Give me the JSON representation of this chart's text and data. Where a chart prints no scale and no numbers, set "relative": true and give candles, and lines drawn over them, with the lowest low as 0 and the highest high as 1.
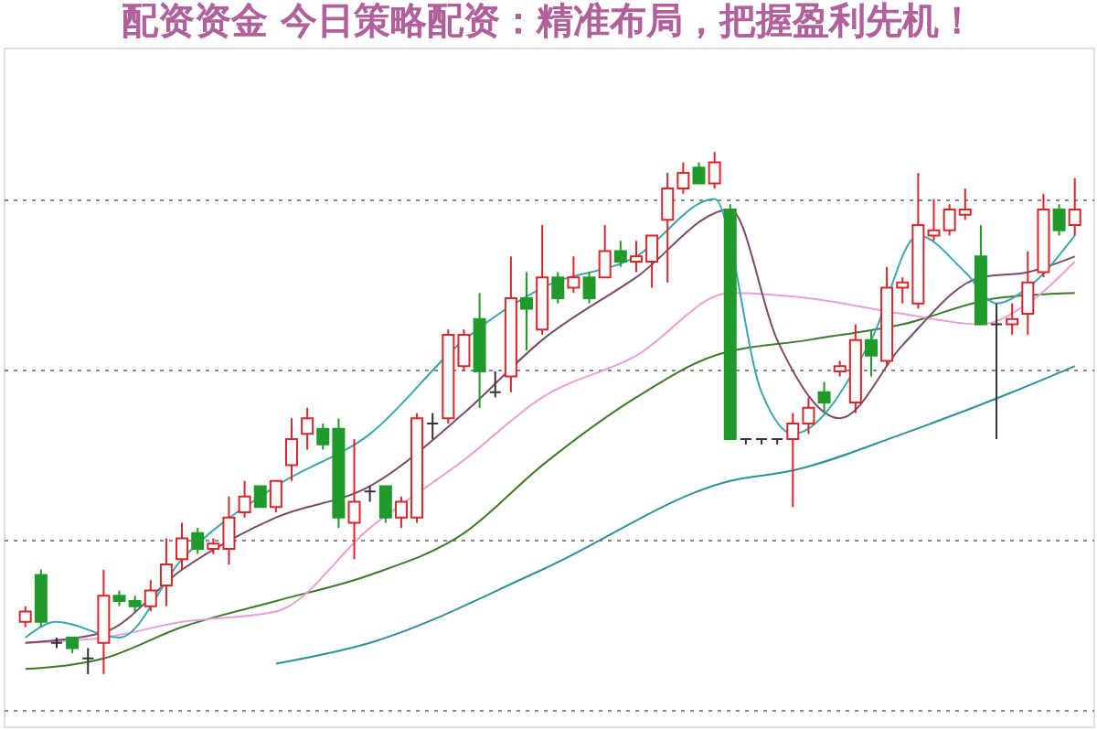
{
  "chart_data": {
    "type": "candlestick",
    "title": "配资资金 今日策略配资：精准布局，把握盈利先机！",
    "relative": true,
    "grid": "y",
    "categories": [
      null,
      null,
      null,
      null,
      null,
      null,
      null,
      null,
      null,
      null,
      null,
      null,
      null,
      null,
      null,
      null,
      null,
      null,
      null,
      null,
      null,
      null,
      null,
      null,
      null,
      null,
      null,
      null,
      null,
      null,
      null,
      null,
      null,
      null,
      null,
      null,
      null,
      null,
      null,
      null,
      null,
      null,
      null,
      null,
      null,
      null,
      null,
      null,
      null,
      null,
      null,
      null,
      null,
      null,
      null,
      null,
      null,
      null,
      null,
      null,
      null,
      null,
      null,
      null,
      null,
      null,
      null,
      null
    ],
    "ohlc": [
      [
        0.1,
        0.13,
        0.09,
        0.12
      ],
      [
        0.19,
        0.2,
        0.09,
        0.1
      ],
      [
        0.06,
        0.07,
        0.05,
        0.06
      ],
      [
        0.07,
        0.07,
        0.04,
        0.05
      ],
      [
        0.03,
        0.05,
        0.0,
        0.03
      ],
      [
        0.06,
        0.2,
        0.0,
        0.15
      ],
      [
        0.15,
        0.16,
        0.13,
        0.14
      ],
      [
        0.14,
        0.15,
        0.12,
        0.13
      ],
      [
        0.13,
        0.18,
        0.12,
        0.16
      ],
      [
        0.17,
        0.26,
        0.13,
        0.21
      ],
      [
        0.22,
        0.29,
        0.2,
        0.26
      ],
      [
        0.27,
        0.28,
        0.23,
        0.24
      ],
      [
        0.24,
        0.26,
        0.23,
        0.25
      ],
      [
        0.24,
        0.34,
        0.21,
        0.3
      ],
      [
        0.31,
        0.37,
        0.3,
        0.34
      ],
      [
        0.36,
        0.36,
        0.32,
        0.32
      ],
      [
        0.32,
        0.37,
        0.31,
        0.37
      ],
      [
        0.4,
        0.49,
        0.37,
        0.45
      ],
      [
        0.46,
        0.51,
        0.43,
        0.49
      ],
      [
        0.47,
        0.48,
        0.43,
        0.44
      ],
      [
        0.47,
        0.49,
        0.28,
        0.3
      ],
      [
        0.29,
        0.45,
        0.22,
        0.33
      ],
      [
        0.35,
        0.36,
        0.33,
        0.35
      ],
      [
        0.36,
        0.36,
        0.29,
        0.3
      ],
      [
        0.3,
        0.34,
        0.28,
        0.33
      ],
      [
        0.3,
        0.5,
        0.29,
        0.49
      ],
      [
        0.48,
        0.5,
        0.45,
        0.48
      ],
      [
        0.49,
        0.66,
        0.48,
        0.65
      ],
      [
        0.59,
        0.66,
        0.58,
        0.65
      ],
      [
        0.68,
        0.73,
        0.51,
        0.58
      ],
      [
        0.54,
        0.58,
        0.53,
        0.54
      ],
      [
        0.57,
        0.8,
        0.54,
        0.72
      ],
      [
        0.72,
        0.77,
        0.62,
        0.7
      ],
      [
        0.66,
        0.86,
        0.65,
        0.76
      ],
      [
        0.76,
        0.77,
        0.71,
        0.72
      ],
      [
        0.74,
        0.8,
        0.73,
        0.76
      ],
      [
        0.76,
        0.77,
        0.71,
        0.72
      ],
      [
        0.76,
        0.86,
        0.76,
        0.81
      ],
      [
        0.81,
        0.83,
        0.78,
        0.79
      ],
      [
        0.79,
        0.83,
        0.77,
        0.8
      ],
      [
        0.79,
        0.84,
        0.74,
        0.84
      ],
      [
        0.87,
        0.96,
        0.75,
        0.93
      ],
      [
        0.93,
        0.98,
        0.92,
        0.96
      ],
      [
        0.97,
        0.98,
        0.94,
        0.94
      ],
      [
        0.94,
        1.0,
        0.93,
        0.98
      ],
      [
        0.89,
        0.9,
        0.45,
        0.45
      ],
      [
        0.45,
        0.45,
        0.44,
        0.45
      ],
      [
        0.45,
        0.45,
        0.44,
        0.45
      ],
      [
        0.45,
        0.45,
        0.44,
        0.45
      ],
      [
        0.45,
        0.5,
        0.32,
        0.48
      ],
      [
        0.48,
        0.53,
        0.46,
        0.51
      ],
      [
        0.54,
        0.56,
        0.5,
        0.52
      ],
      [
        0.58,
        0.6,
        0.57,
        0.59
      ],
      [
        0.52,
        0.67,
        0.5,
        0.64
      ],
      [
        0.64,
        0.66,
        0.57,
        0.61
      ],
      [
        0.6,
        0.78,
        0.59,
        0.74
      ],
      [
        0.74,
        0.76,
        0.71,
        0.75
      ],
      [
        0.71,
        0.96,
        0.7,
        0.86
      ],
      [
        0.84,
        0.91,
        0.83,
        0.85
      ],
      [
        0.85,
        0.9,
        0.84,
        0.89
      ],
      [
        0.88,
        0.93,
        0.87,
        0.89
      ],
      [
        0.8,
        0.86,
        0.67,
        0.67
      ],
      [
        0.67,
        0.71,
        0.45,
        0.67
      ],
      [
        0.67,
        0.71,
        0.65,
        0.68
      ],
      [
        0.69,
        0.81,
        0.65,
        0.75
      ],
      [
        0.77,
        0.92,
        0.76,
        0.89
      ],
      [
        0.89,
        0.9,
        0.84,
        0.85
      ],
      [
        0.86,
        0.95,
        0.84,
        0.89
      ]
    ],
    "series": [
      {
        "type": "line",
        "color": "#2f8f9a",
        "values": [
          null,
          null,
          null,
          null,
          null,
          null,
          null,
          null,
          null,
          null,
          null,
          null,
          null,
          null,
          null,
          null,
          0.02,
          null,
          null,
          null,
          null,
          null,
          0.06,
          null,
          null,
          null,
          null,
          null,
          null,
          null,
          null,
          null,
          null,
          0.2,
          null,
          null,
          null,
          null,
          null,
          null,
          null,
          null,
          null,
          null,
          null,
          0.37,
          null,
          null,
          null,
          0.39,
          null,
          null,
          null,
          null,
          null,
          null,
          0.46,
          null,
          null,
          null,
          null,
          null,
          null,
          0.54,
          null,
          null,
          null,
          0.59
        ]
      },
      {
        "type": "line",
        "color": "#3d7a2a",
        "values": [
          0.01,
          null,
          null,
          null,
          null,
          0.03,
          null,
          null,
          null,
          null,
          0.09,
          null,
          null,
          null,
          null,
          null,
          0.14,
          null,
          null,
          null,
          null,
          null,
          0.19,
          null,
          null,
          null,
          null,
          null,
          0.27,
          null,
          null,
          null,
          null,
          0.4,
          null,
          null,
          null,
          null,
          null,
          0.53,
          null,
          null,
          null,
          null,
          0.61,
          null,
          null,
          null,
          null,
          null,
          0.64,
          null,
          null,
          null,
          null,
          null,
          0.67,
          null,
          null,
          null,
          null,
          null,
          0.72,
          null,
          null,
          null,
          null,
          0.73
        ]
      },
      {
        "type": "line",
        "color": "#e8a0d8",
        "values": [
          0.06,
          null,
          null,
          null,
          null,
          0.07,
          null,
          null,
          null,
          null,
          0.1,
          null,
          null,
          null,
          null,
          null,
          0.12,
          null,
          null,
          null,
          null,
          null,
          0.28,
          null,
          null,
          null,
          null,
          null,
          0.41,
          null,
          null,
          null,
          null,
          0.53,
          null,
          null,
          null,
          null,
          null,
          0.61,
          null,
          null,
          null,
          null,
          null,
          0.73,
          null,
          null,
          null,
          null,
          0.72,
          null,
          null,
          null,
          null,
          null,
          0.69,
          null,
          null,
          null,
          null,
          0.67,
          null,
          null,
          0.71,
          null,
          null,
          0.79
        ]
      },
      {
        "type": "line",
        "color": "#7a4a6e",
        "values": [
          0.06,
          null,
          null,
          null,
          null,
          0.08,
          null,
          null,
          null,
          null,
          0.2,
          null,
          null,
          null,
          null,
          null,
          0.3,
          null,
          null,
          null,
          null,
          null,
          0.36,
          null,
          null,
          null,
          null,
          null,
          0.5,
          null,
          null,
          null,
          null,
          0.64,
          null,
          null,
          null,
          null,
          null,
          0.76,
          null,
          null,
          null,
          null,
          null,
          0.89,
          null,
          null,
          0.64,
          null,
          null,
          null,
          0.49,
          null,
          null,
          null,
          0.63,
          null,
          null,
          null,
          null,
          0.76,
          null,
          null,
          0.77,
          null,
          null,
          0.8
        ]
      },
      {
        "type": "line",
        "color": "#3aa6b0",
        "values": [
          0.07,
          null,
          0.1,
          null,
          null,
          null,
          0.07,
          null,
          null,
          null,
          0.22,
          null,
          null,
          null,
          null,
          null,
          0.36,
          null,
          null,
          null,
          null,
          null,
          0.46,
          null,
          null,
          null,
          null,
          null,
          0.64,
          null,
          null,
          null,
          null,
          0.74,
          null,
          null,
          null,
          null,
          null,
          0.8,
          null,
          null,
          null,
          null,
          0.91,
          null,
          null,
          0.54,
          null,
          0.46,
          null,
          null,
          null,
          null,
          0.64,
          null,
          null,
          0.84,
          null,
          null,
          0.77,
          null,
          0.71,
          null,
          0.74,
          null,
          null,
          0.84
        ]
      }
    ]
  }
}
